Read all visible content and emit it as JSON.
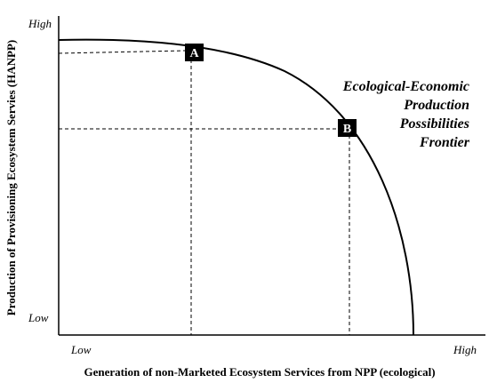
{
  "y_axis": {
    "label": "Production of Provisioning Ecosystem Servies (HANPP)",
    "high": "High",
    "low": "Low"
  },
  "x_axis": {
    "label": "Generation of non-Marketed Ecosystem Services from NPP (ecological)",
    "low": "Low",
    "high": "High"
  },
  "points": [
    {
      "label": "A"
    },
    {
      "label": "B"
    }
  ],
  "frontier_label": [
    "Ecological-Economic",
    "Production",
    "Possibilities",
    "Frontier"
  ]
}
